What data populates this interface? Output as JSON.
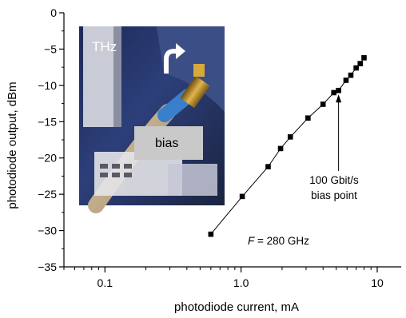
{
  "chart_data": {
    "type": "line",
    "title": "",
    "xlabel": "photodiode current, mA",
    "ylabel": "photodiode output, dBm",
    "x_scale": "log",
    "xlim": [
      0.05,
      15
    ],
    "ylim": [
      -35,
      0
    ],
    "x_ticks": [
      0.1,
      1.0,
      10
    ],
    "x_tick_labels": [
      "0.1",
      "1.0",
      "10"
    ],
    "y_ticks": [
      0,
      -5,
      -10,
      -15,
      -20,
      -25,
      -30,
      -35
    ],
    "y_tick_labels": [
      "0",
      "−5",
      "−10",
      "−15",
      "−20",
      "−25",
      "−30",
      "−35"
    ],
    "grid": false,
    "series": [
      {
        "marker": "square",
        "color": "#000000",
        "x": [
          0.6,
          1.02,
          1.58,
          1.95,
          2.3,
          3.1,
          4.0,
          4.8,
          5.2,
          5.9,
          6.4,
          7.0,
          7.5,
          8.0
        ],
        "y": [
          -30.5,
          -25.3,
          -21.2,
          -18.7,
          -17.1,
          -14.5,
          -12.6,
          -11.0,
          -10.7,
          -9.3,
          -8.6,
          -7.6,
          -7.0,
          -6.2
        ]
      }
    ],
    "annotations": {
      "bias_label_line1": "100 Gbit/s",
      "bias_label_line2": "bias point",
      "bias_point_x": 5.2,
      "bias_point_y": -10.7,
      "freq_italic": "F",
      "freq_text": " = 280 GHz"
    },
    "inset_photo": {
      "label_thz": "THz",
      "label_bias": "bias"
    }
  }
}
